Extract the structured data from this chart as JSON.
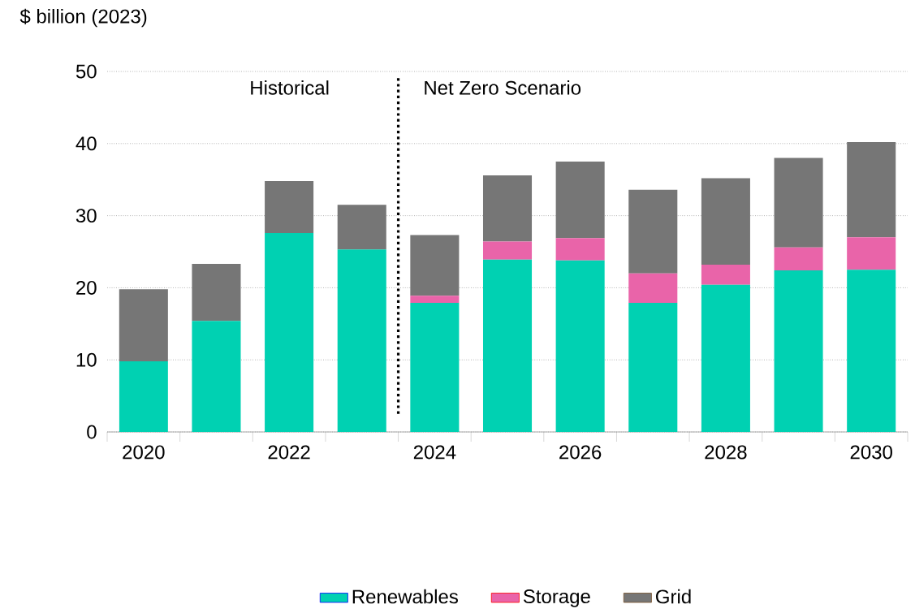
{
  "chart_data": {
    "type": "bar",
    "stacked": true,
    "ylabel": "$ billion (2023)",
    "x": [
      2020,
      2021,
      2022,
      2023,
      2024,
      2025,
      2026,
      2027,
      2028,
      2029,
      2030
    ],
    "series": [
      {
        "name": "Renewables",
        "color": "#00d1b2",
        "values": [
          9.8,
          15.4,
          27.6,
          25.3,
          17.9,
          23.9,
          23.8,
          17.9,
          20.4,
          22.4,
          22.5
        ]
      },
      {
        "name": "Storage",
        "color": "#e964a9",
        "values": [
          0,
          0,
          0,
          0,
          1.0,
          2.5,
          3.1,
          4.1,
          2.8,
          3.2,
          4.5
        ]
      },
      {
        "name": "Grid",
        "color": "#767676",
        "values": [
          10.0,
          7.9,
          7.2,
          6.2,
          8.4,
          9.2,
          10.6,
          11.6,
          12.0,
          12.4,
          13.2
        ]
      }
    ],
    "xlim": [
      2019.5,
      2030.5
    ],
    "xticks": [
      2020,
      2022,
      2024,
      2026,
      2028,
      2030,
      {
        "value": 2019.5,
        "label": null
      },
      {
        "value": 2020.5,
        "label": null
      },
      {
        "value": 2021.5,
        "label": null
      },
      {
        "value": 2022.5,
        "label": null
      },
      {
        "value": 2023.5,
        "label": null
      },
      {
        "value": 2024.5,
        "label": null
      },
      {
        "value": 2025.5,
        "label": null
      },
      {
        "value": 2026.5,
        "label": null
      },
      {
        "value": 2027.5,
        "label": null
      },
      {
        "value": 2028.5,
        "label": null
      },
      {
        "value": 2029.5,
        "label": null
      },
      {
        "value": 2030.5,
        "label": null
      }
    ],
    "ylim": [
      0,
      50
    ],
    "yticks": [
      0,
      10,
      20,
      30,
      40,
      50
    ],
    "grid": "y",
    "legend": "bottom",
    "ref_lines": [
      {
        "axis": "x",
        "value": 2023.5,
        "line_style": "dotted",
        "color": "#000000"
      }
    ],
    "annotations": [
      "Historical",
      "Net Zero Scenario"
    ]
  }
}
